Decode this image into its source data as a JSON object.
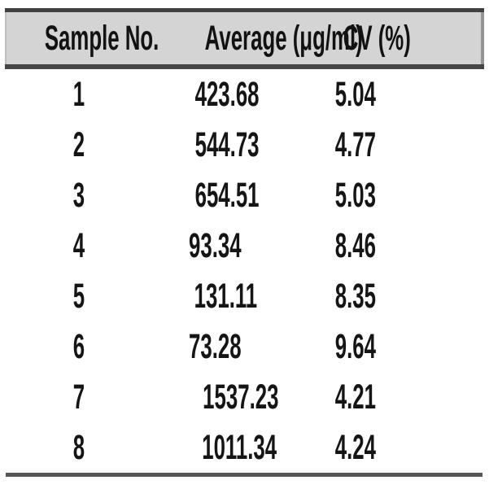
{
  "chart_data": {
    "type": "table",
    "columns": [
      "Sample No.",
      "Average (μg/ml)",
      "CV (%)"
    ],
    "rows": [
      [
        "1",
        "423.68",
        "5.04"
      ],
      [
        "2",
        "544.73",
        "4.77"
      ],
      [
        "3",
        "654.51",
        "5.03"
      ],
      [
        "4",
        "93.34",
        "8.46"
      ],
      [
        "5",
        "131.11",
        "8.35"
      ],
      [
        "6",
        "73.28",
        "9.64"
      ],
      [
        "7",
        "1537.23",
        "4.21"
      ],
      [
        "8",
        "1011.34",
        "4.24"
      ]
    ],
    "categories": [
      "1",
      "2",
      "3",
      "4",
      "5",
      "6",
      "7",
      "8"
    ],
    "series": [
      {
        "name": "Average (μg/ml)",
        "values": [
          423.68,
          544.73,
          654.51,
          93.34,
          131.11,
          73.28,
          1537.23,
          1011.34
        ]
      },
      {
        "name": "CV (%)",
        "values": [
          5.04,
          4.77,
          5.03,
          8.46,
          8.35,
          9.64,
          4.21,
          4.24
        ]
      }
    ],
    "title": "",
    "layout": {
      "grid": false,
      "header_band": true,
      "rules": "horizontal-only"
    }
  },
  "colors": {
    "header_bg": "#d4d4d4",
    "rule_dark": "#454545",
    "rule_bottom": "#565656",
    "text": "#151515",
    "background": "#ffffff"
  }
}
